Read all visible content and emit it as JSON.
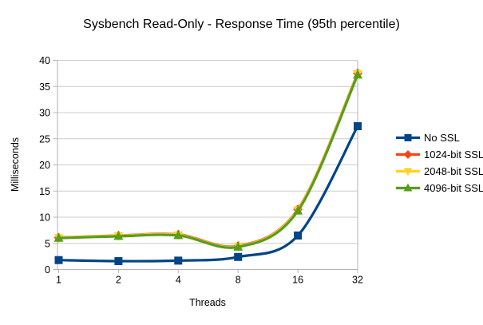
{
  "chart_data": {
    "type": "line",
    "title": "Sysbench Read-Only - Response Time (95th percentile)",
    "xlabel": "Threads",
    "ylabel": "Milliseconds",
    "categories": [
      "1",
      "2",
      "4",
      "8",
      "16",
      "32"
    ],
    "ylim": [
      0,
      40
    ],
    "ytick_step": 5,
    "yticks": [
      "0",
      "5",
      "10",
      "15",
      "20",
      "25",
      "30",
      "35",
      "40"
    ],
    "grid": true,
    "line_smoothing": "spline",
    "legend_position": "right",
    "series": [
      {
        "name": "No SSL",
        "color": "#004586",
        "marker": "square",
        "values": [
          1.8,
          1.6,
          1.7,
          2.4,
          6.5,
          27.4
        ]
      },
      {
        "name": "1024-bit SSL",
        "color": "#FF420E",
        "marker": "diamond",
        "values": [
          6.1,
          6.5,
          6.7,
          4.5,
          11.5,
          37.5
        ]
      },
      {
        "name": "2048-bit SSL",
        "color": "#FFD320",
        "marker": "triangle-down",
        "values": [
          6.05,
          6.45,
          6.6,
          4.4,
          11.4,
          37.4
        ]
      },
      {
        "name": "4096-bit SSL",
        "color": "#579D1C",
        "marker": "triangle-up",
        "values": [
          6.0,
          6.35,
          6.5,
          4.3,
          11.2,
          37.2
        ]
      }
    ],
    "colors": {
      "axis": "#b3b3b3",
      "grid": "#cccccc",
      "background": "#ffffff",
      "text": "#000000"
    }
  }
}
